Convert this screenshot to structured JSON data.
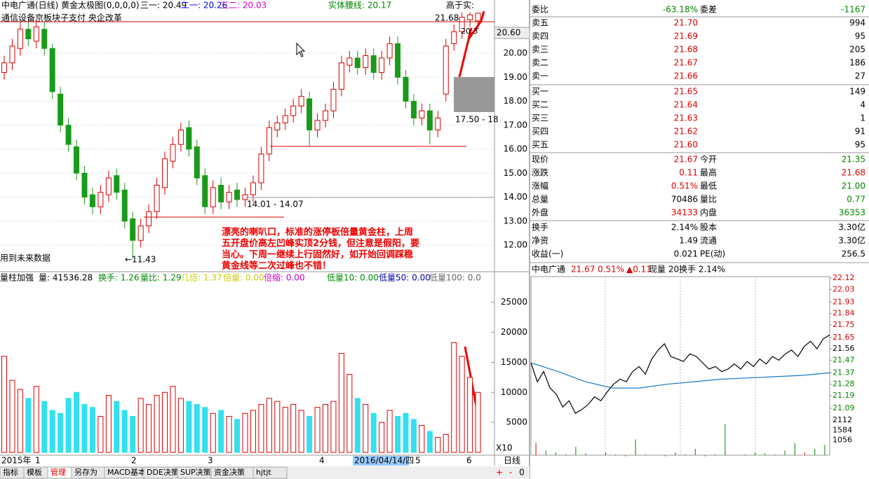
{
  "header": {
    "title": "中电广通(日线) 黄金太极图(0,0,0,0)",
    "items": [
      "三一: 20.49",
      "二一: 20.26",
      "三二: 20.03",
      "实体腰线: 20.17",
      "高于实:"
    ],
    "concepts": "通信设备京板块子支付 央企改革"
  },
  "price_chart": {
    "type": "candlestick",
    "ylim": [
      10.98,
      22.22
    ],
    "yticks": [
      {
        "value": 12,
        "label": "12.00"
      },
      {
        "value": 13,
        "label": "13.00"
      },
      {
        "value": 14,
        "label": "14.00"
      },
      {
        "value": 15,
        "label": "15.00"
      },
      {
        "value": 16,
        "label": "16.00"
      },
      {
        "value": 17,
        "label": "17.00"
      },
      {
        "value": 18,
        "label": "18.00"
      },
      {
        "value": 19,
        "label": "19.00"
      },
      {
        "value": 20,
        "label": "20.00"
      }
    ],
    "open": [
      19.2,
      19.6,
      20.2,
      21.0,
      20.5,
      21.0,
      20.2,
      18.3,
      17.0,
      16.1,
      15.0,
      14.1,
      13.6,
      14.1,
      14.9,
      14.3,
      13.1,
      12.2,
      12.8,
      13.4,
      14.4,
      15.5,
      16.2,
      16.9,
      16.1,
      14.9,
      13.6,
      14.5,
      13.8,
      14.3,
      13.9,
      14.1,
      14.6,
      15.8,
      16.8,
      17.1,
      17.4,
      17.8,
      18.1,
      16.8,
      17.2,
      17.6,
      18.5,
      19.5,
      19.8,
      19.4,
      19.9,
      19.2,
      19.8,
      20.4,
      19.0,
      18.0,
      17.3,
      17.6,
      16.8,
      18.3,
      20.4,
      20.9,
      21.4,
      21.35
    ],
    "high": [
      19.9,
      20.6,
      21.3,
      21.3,
      21.4,
      21.3,
      20.4,
      18.6,
      17.3,
      16.4,
      15.3,
      14.4,
      14.5,
      15.1,
      15.2,
      14.6,
      13.4,
      13.1,
      13.7,
      14.8,
      15.9,
      16.5,
      17.1,
      17.2,
      16.4,
      15.2,
      14.7,
      14.8,
      14.5,
      14.6,
      14.4,
      14.9,
      16.1,
      17.2,
      17.4,
      17.7,
      18.1,
      18.5,
      18.4,
      17.5,
      17.9,
      18.8,
      19.9,
      20.1,
      20.1,
      20.2,
      20.2,
      20.1,
      20.7,
      20.7,
      19.3,
      18.3,
      17.9,
      17.9,
      17.6,
      20.6,
      21.2,
      21.7,
      21.7,
      21.68
    ],
    "low": [
      18.9,
      19.3,
      19.9,
      20.3,
      20.2,
      19.9,
      18.1,
      16.7,
      15.9,
      14.7,
      13.7,
      13.3,
      13.3,
      13.8,
      13.9,
      12.7,
      11.43,
      11.9,
      12.5,
      13.1,
      14.1,
      15.2,
      15.9,
      15.7,
      14.5,
      13.3,
      13.3,
      13.5,
      13.5,
      13.6,
      13.6,
      13.8,
      14.3,
      15.5,
      16.5,
      16.8,
      17.1,
      17.5,
      16.1,
      16.5,
      16.9,
      17.3,
      18.2,
      19.2,
      19.1,
      19.1,
      18.9,
      18.9,
      19.5,
      18.7,
      17.7,
      17.0,
      17.0,
      16.2,
      16.5,
      18.0,
      20.1,
      20.6,
      21.1,
      21.0
    ],
    "close": [
      19.6,
      20.3,
      21.0,
      20.6,
      21.1,
      20.2,
      18.4,
      17.0,
      16.2,
      15.0,
      14.0,
      13.6,
      14.2,
      14.8,
      14.2,
      13.0,
      12.2,
      12.8,
      13.4,
      14.5,
      15.6,
      16.2,
      16.8,
      16.0,
      14.8,
      13.6,
      14.4,
      13.8,
      14.2,
      13.9,
      14.1,
      14.6,
      15.8,
      16.9,
      17.1,
      17.4,
      17.8,
      18.2,
      16.8,
      17.2,
      17.6,
      18.5,
      19.6,
      19.8,
      19.4,
      19.9,
      19.2,
      19.8,
      20.4,
      19.0,
      18.0,
      17.3,
      17.6,
      16.8,
      17.3,
      20.3,
      20.9,
      21.5,
      21.6,
      21.67
    ],
    "annotations": {
      "high_label": "21.68",
      "price_box": "20.60",
      "range1": "17.50 - 18",
      "range2": "14.01 - 14.07",
      "low_label": "←11.43",
      "note": "用到未来数据",
      "small": "20.3"
    },
    "comment": [
      "漂亮的喇叭口，标准的涨停板倍量黄金柱，上周",
      "五开盘价高左凹峰实顶2分钱，但注意是假阳，要",
      "当心。下周一继续上行固然好，如开始回调踩稳",
      "黄金线等二次过峰也不错！"
    ]
  },
  "volume_chart": {
    "type": "bar",
    "ylim": [
      0,
      28700
    ],
    "yticks": [
      5000,
      10000,
      15000,
      20000,
      25000
    ],
    "values": [
      16000,
      12000,
      10500,
      9000,
      11000,
      8500,
      7000,
      6500,
      9000,
      10000,
      8000,
      7500,
      6000,
      9500,
      8500,
      7000,
      6000,
      9000,
      8000,
      9500,
      10000,
      11000,
      9000,
      8500,
      8000,
      7500,
      6500,
      7000,
      6000,
      5500,
      6500,
      7000,
      8000,
      9000,
      8500,
      7500,
      8000,
      7000,
      6000,
      7500,
      8000,
      8500,
      16500,
      13000,
      9000,
      8000,
      6500,
      5000,
      7000,
      6000,
      6500,
      5500,
      4500,
      3500,
      2500,
      3000,
      18300,
      16000,
      12500,
      10000
    ],
    "header": [
      "量柱加强",
      "量: 41536.28",
      "换手: 1.26",
      "量比: 1.29",
      "几倍: 1.37",
      "倍量: 0.00",
      "倍缩: 0.00",
      "低量10: 0.00",
      "低量50: 0.00",
      "低量100: 0.0"
    ],
    "scale": "X10"
  },
  "x_axis": [
    "2015年",
    "1",
    "2",
    "3",
    "4",
    "2016/04/14/四",
    "5",
    "6"
  ],
  "period": "日线",
  "quote": {
    "top": [
      "委比",
      "-63.18%",
      "委差",
      "-1167"
    ],
    "asks": [
      [
        "卖五",
        "21.70",
        "994"
      ],
      [
        "卖四",
        "21.69",
        "95"
      ],
      [
        "卖三",
        "21.68",
        "205"
      ],
      [
        "卖二",
        "21.67",
        "186"
      ],
      [
        "卖一",
        "21.66",
        "27"
      ]
    ],
    "bids": [
      [
        "买一",
        "21.65",
        "149"
      ],
      [
        "买二",
        "21.64",
        "4"
      ],
      [
        "买三",
        "21.63",
        "1"
      ],
      [
        "买四",
        "21.62",
        "91"
      ],
      [
        "买五",
        "21.60",
        "95"
      ]
    ],
    "stats": [
      [
        "现价",
        "21.67",
        "今开",
        "21.35"
      ],
      [
        "涨跌",
        "0.11",
        "最高",
        "21.68"
      ],
      [
        "涨幅",
        "0.51%",
        "最低",
        "21.00"
      ],
      [
        "总量",
        "70486",
        "量比",
        "0.77"
      ],
      [
        "外盘",
        "34133",
        "内盘",
        "36353"
      ]
    ],
    "stats2": [
      [
        "换手",
        "2.14%",
        "股本",
        "3.30亿"
      ],
      [
        "净资",
        "1.49",
        "流通",
        "3.30亿"
      ],
      [
        "收益(一)",
        "0.021",
        "PE(动)",
        "256.5"
      ]
    ]
  },
  "intraday": {
    "type": "line",
    "header": [
      "中电广通",
      "21.67",
      "0.51%",
      "▲0.11",
      "现量 20",
      "换手 2.14%"
    ],
    "ylim": [
      21.09,
      22.12
    ],
    "yticks": [
      {
        "value": 22.12,
        "label": "22.12"
      },
      {
        "value": 22.03,
        "label": "22.03"
      },
      {
        "value": 21.93,
        "label": "21.93"
      },
      {
        "value": 21.84,
        "label": "21.84"
      },
      {
        "value": 21.75,
        "label": "21.75"
      },
      {
        "value": 21.65,
        "label": "21.65"
      },
      {
        "value": 21.56,
        "label": "21.56"
      },
      {
        "value": 21.47,
        "label": "21.47"
      },
      {
        "value": 21.37,
        "label": "21.37"
      },
      {
        "value": 21.28,
        "label": "21.28"
      },
      {
        "value": 21.19,
        "label": "21.19"
      },
      {
        "value": 21.09,
        "label": "21.09"
      }
    ],
    "price": [
      21.45,
      21.3,
      21.38,
      21.25,
      21.2,
      21.1,
      21.15,
      21.05,
      21.08,
      21.12,
      21.18,
      21.15,
      21.22,
      21.28,
      21.32,
      21.3,
      21.38,
      21.42,
      21.36,
      21.48,
      21.55,
      21.6,
      21.5,
      21.48,
      21.46,
      21.52,
      21.5,
      21.45,
      21.4,
      21.42,
      21.38,
      21.4,
      21.44,
      21.4,
      21.46,
      21.42,
      21.48,
      21.44,
      21.5,
      21.47,
      21.52,
      21.55,
      21.5,
      21.58,
      21.62,
      21.56,
      21.64,
      21.67
    ],
    "average": [
      21.45,
      21.38,
      21.3,
      21.25,
      21.25,
      21.28,
      21.3,
      21.32,
      21.33,
      21.34,
      21.35,
      21.37
    ],
    "vlim": [
      0,
      2112
    ],
    "vticks": [
      2112,
      1584,
      1056
    ],
    "volume": [
      900,
      500,
      400,
      300,
      700,
      350,
      250,
      400,
      300,
      200,
      1100,
      300,
      250,
      200,
      400,
      300,
      600,
      200,
      300,
      1900,
      250,
      300,
      400,
      350,
      300,
      500,
      900,
      400,
      600,
      800
    ]
  },
  "tabs": [
    "指标",
    "模板",
    "管理",
    "另存为",
    "MACD基本",
    "DDE决策",
    "SUP决策",
    "资金决策",
    "hjtjt"
  ],
  "controls": [
    "+",
    "-",
    "0"
  ]
}
